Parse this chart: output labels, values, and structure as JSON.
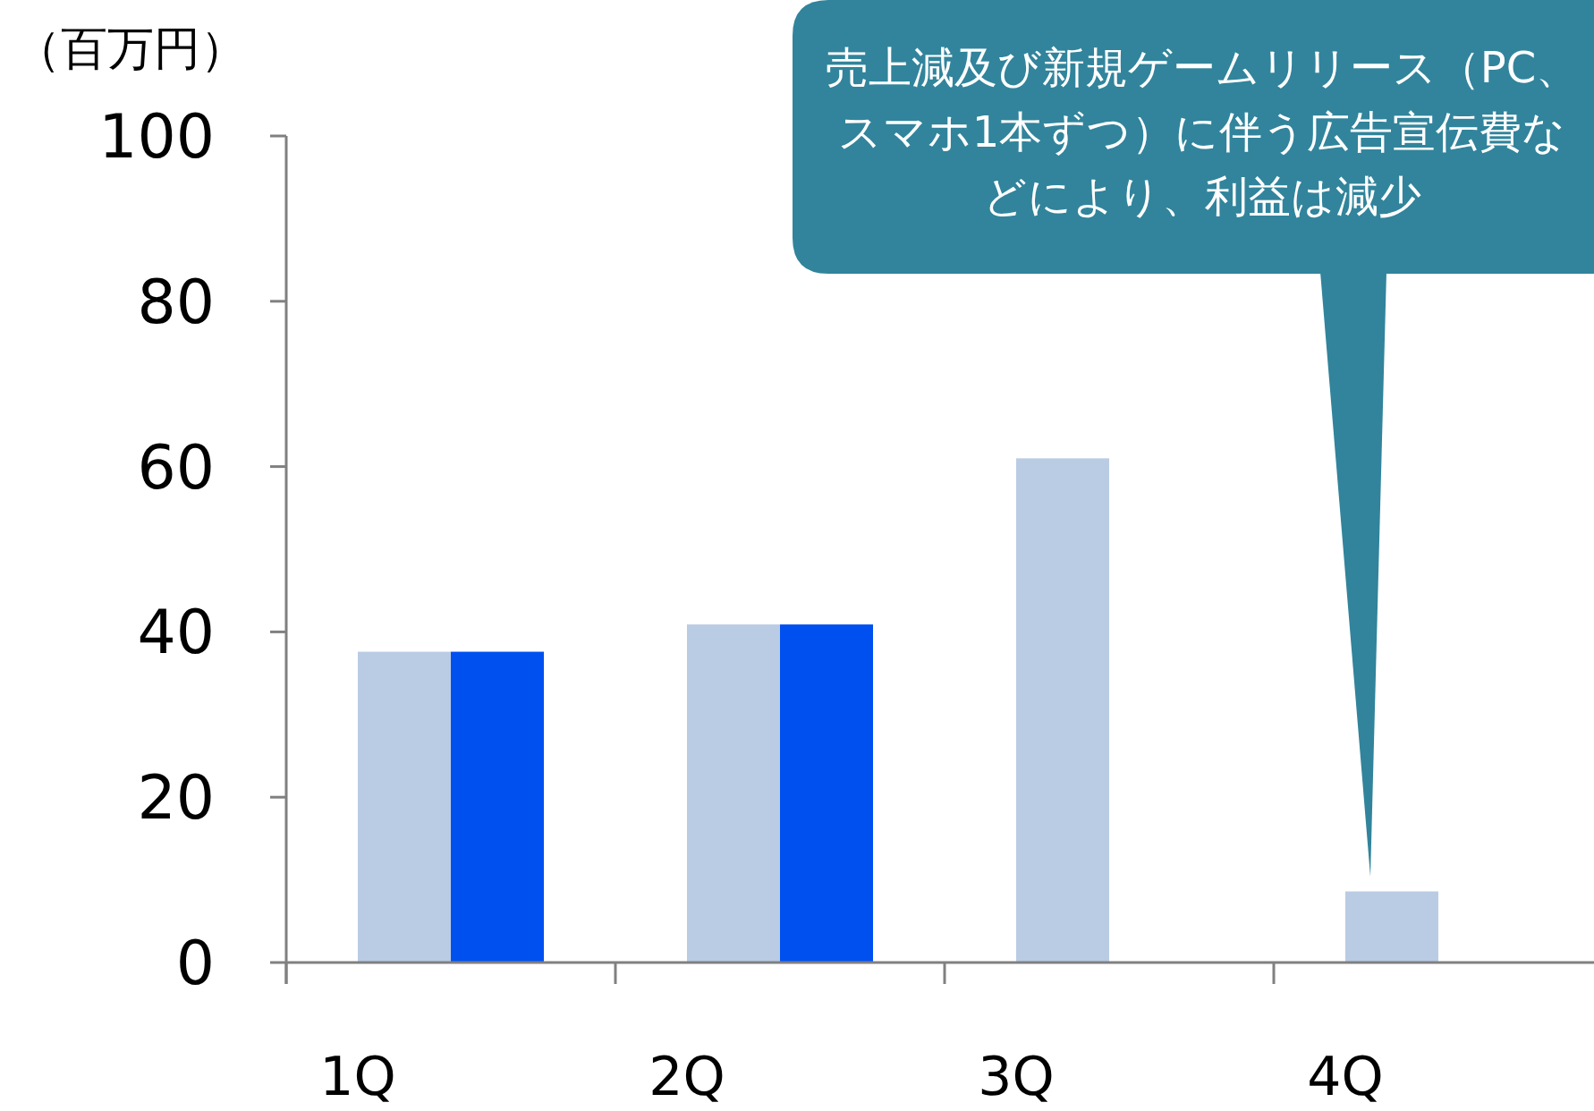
{
  "chart_data": {
    "type": "bar",
    "ylabel": "（百万円）",
    "categories": [
      "1Q",
      "2Q",
      "3Q",
      "4Q"
    ],
    "series": [
      {
        "color": "#b9cce4",
        "values": [
          37.6,
          40.9,
          61.0,
          8.6
        ]
      },
      {
        "color": "#0050f0",
        "values": [
          37.6,
          40.9,
          null,
          null
        ]
      }
    ],
    "ylim": [
      0,
      100
    ],
    "yticks": [
      0,
      20,
      40,
      60,
      80,
      100
    ],
    "grid": false,
    "annotations": [
      "売上減及び新規ゲームリリース（PC、スマホ1本ずつ）に伴う広告宣伝費などにより、利益は減少"
    ]
  }
}
